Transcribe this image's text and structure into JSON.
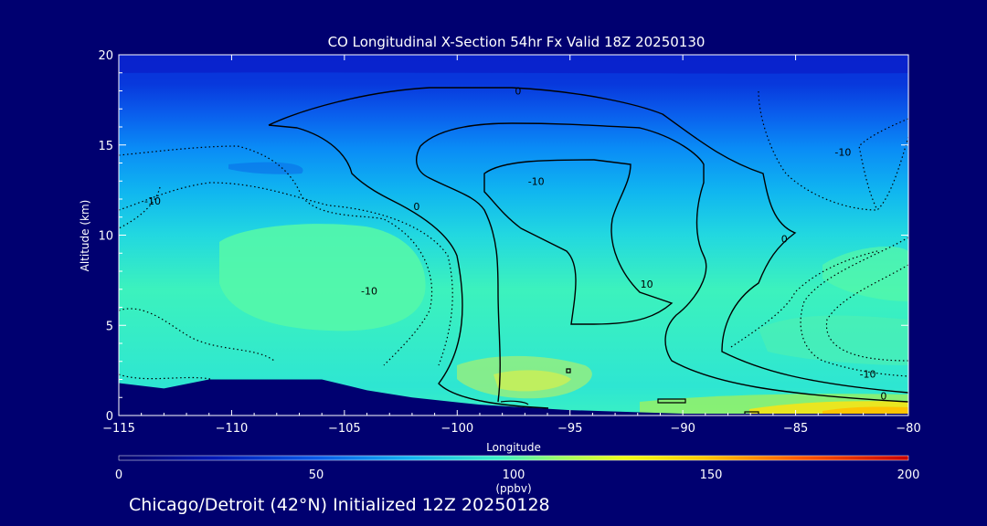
{
  "chart_data": {
    "type": "heatmap",
    "title": "CO Longitudinal X-Section 54hr  Fx Valid 18Z 20250130",
    "xlabel": "Longitude",
    "ylabel": "Altitude (km)",
    "xlim": [
      -115,
      -80
    ],
    "ylim": [
      0,
      20
    ],
    "x_ticks": [
      "-115",
      "-110",
      "-105",
      "-100",
      "-95",
      "-90",
      "-85",
      "-80"
    ],
    "y_ticks": [
      "0",
      "5",
      "10",
      "15",
      "20"
    ],
    "colorbar": {
      "label": "(ppbv)",
      "range": [
        0,
        200
      ],
      "ticks": [
        "0",
        "50",
        "100",
        "150",
        "200"
      ]
    },
    "contour_labels": [
      {
        "text": "0",
        "lon": -97.3,
        "alt": 18.0
      },
      {
        "text": "-10",
        "lon": -82.9,
        "alt": 14.6
      },
      {
        "text": "-10",
        "lon": -96.5,
        "alt": 13.0
      },
      {
        "text": "-10",
        "lon": -113.5,
        "alt": 11.9
      },
      {
        "text": "0",
        "lon": -101.8,
        "alt": 11.6
      },
      {
        "text": "0",
        "lon": -85.5,
        "alt": 9.8
      },
      {
        "text": "-10",
        "lon": -103.9,
        "alt": 6.9
      },
      {
        "text": "10",
        "lon": -91.6,
        "alt": 7.3
      },
      {
        "text": "-10",
        "lon": -81.8,
        "alt": 2.3
      },
      {
        "text": "0",
        "lon": -81.1,
        "alt": 1.1
      }
    ],
    "terrain": [
      {
        "lon": -115,
        "alt": 1.8
      },
      {
        "lon": -113,
        "alt": 1.5
      },
      {
        "lon": -111,
        "alt": 2.0
      },
      {
        "lon": -108,
        "alt": 2.0
      },
      {
        "lon": -106,
        "alt": 2.0
      },
      {
        "lon": -104,
        "alt": 1.4
      },
      {
        "lon": -102,
        "alt": 1.0
      },
      {
        "lon": -99,
        "alt": 0.6
      },
      {
        "lon": -95,
        "alt": 0.3
      },
      {
        "lon": -90,
        "alt": 0.1
      },
      {
        "lon": -85,
        "alt": 0.1
      },
      {
        "lon": -80,
        "alt": 0.1
      }
    ]
  },
  "footer": "Chicago/Detroit (42°N) Initialized 12Z 20250128",
  "colors": {
    "background": "#000070",
    "terrain": "#000070",
    "top_band": "#0a37e6",
    "mid": "#2ddcd7",
    "peak": "#5affa8"
  }
}
